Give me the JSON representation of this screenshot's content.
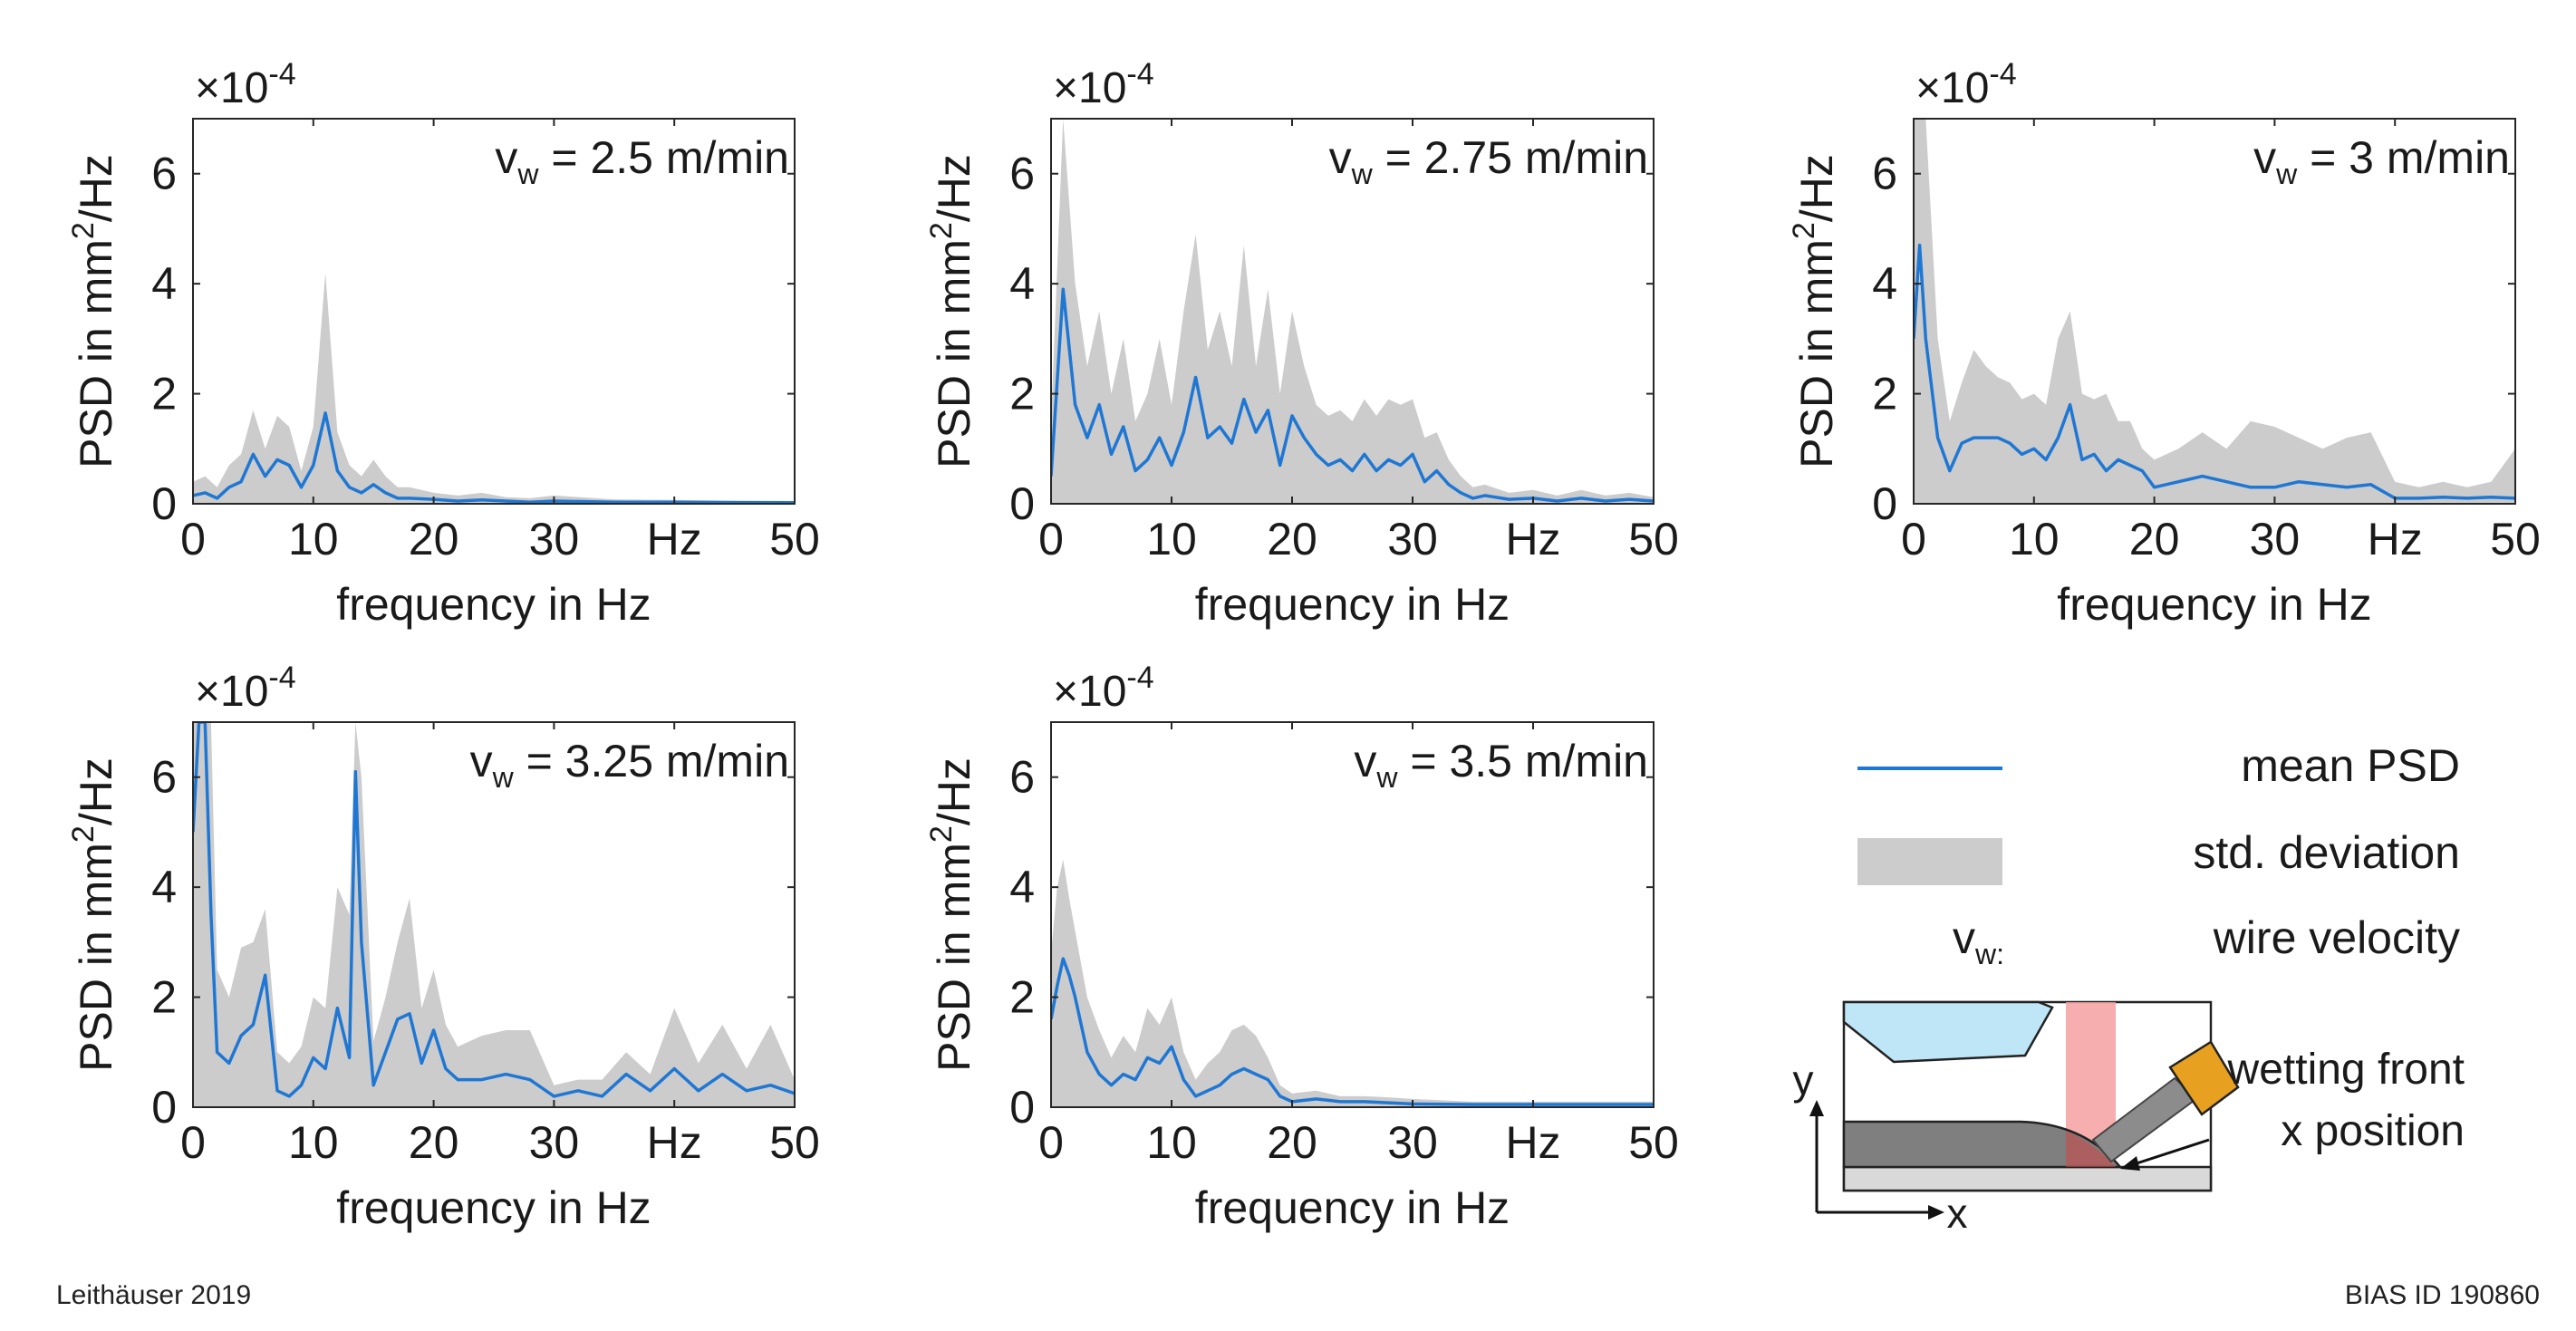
{
  "footer": {
    "author_year": "Leithäuser 2019",
    "id": "BIAS ID 190860"
  },
  "legend": {
    "mean_label": "mean PSD",
    "std_label": "std. deviation",
    "vw_symbol": "v",
    "vw_subscript": "w:",
    "vw_label": "wire velocity",
    "mean_color": "#1f77d4",
    "std_color": "#cccccc"
  },
  "sketch": {
    "y_axis": "y",
    "x_axis": "x",
    "annotation_line1": "wetting front",
    "annotation_line2": "x position"
  },
  "chart_data": [
    {
      "type": "line",
      "title_prefix": "v",
      "title_sub": "w",
      "title_suffix": " = 2.5 m/min",
      "xlabel": "frequency in Hz",
      "ylabel": "PSD in mm",
      "ylabel_sup": "2",
      "ylabel_suffix": "/Hz",
      "exponent_label": "×10",
      "exponent_sup": "-4",
      "xlim": [
        0,
        50
      ],
      "ylim": [
        0,
        7
      ],
      "x_ticks": [
        "0",
        "10",
        "20",
        "30",
        "Hz",
        "50"
      ],
      "y_ticks": [
        "0",
        "2",
        "4",
        "6"
      ],
      "mean": {
        "x": [
          0,
          1,
          2,
          3,
          4,
          5,
          6,
          7,
          8,
          9,
          10,
          11,
          12,
          13,
          14,
          15,
          16,
          17,
          18,
          20,
          22,
          24,
          26,
          28,
          30,
          35,
          40,
          45,
          50
        ],
        "y": [
          0.15,
          0.2,
          0.1,
          0.3,
          0.4,
          0.9,
          0.5,
          0.8,
          0.7,
          0.3,
          0.7,
          1.65,
          0.6,
          0.3,
          0.2,
          0.35,
          0.2,
          0.1,
          0.1,
          0.08,
          0.05,
          0.07,
          0.05,
          0.03,
          0.05,
          0.03,
          0.03,
          0.02,
          0.02
        ]
      },
      "std_upper": {
        "x": [
          0,
          1,
          2,
          3,
          4,
          5,
          6,
          7,
          8,
          9,
          10,
          11,
          12,
          13,
          14,
          15,
          16,
          17,
          18,
          20,
          22,
          24,
          26,
          28,
          30,
          35,
          40,
          45,
          50
        ],
        "y": [
          0.4,
          0.5,
          0.3,
          0.7,
          0.9,
          1.7,
          1.0,
          1.6,
          1.4,
          0.6,
          1.4,
          4.2,
          1.3,
          0.7,
          0.5,
          0.8,
          0.5,
          0.3,
          0.3,
          0.2,
          0.15,
          0.2,
          0.12,
          0.1,
          0.15,
          0.08,
          0.07,
          0.06,
          0.05
        ]
      },
      "std_lower": {
        "x": [
          0,
          50
        ],
        "y": [
          0,
          0
        ]
      }
    },
    {
      "type": "line",
      "title_prefix": "v",
      "title_sub": "w",
      "title_suffix": " = 2.75 m/min",
      "xlabel": "frequency in Hz",
      "ylabel": "PSD in mm",
      "ylabel_sup": "2",
      "ylabel_suffix": "/Hz",
      "exponent_label": "×10",
      "exponent_sup": "-4",
      "xlim": [
        0,
        50
      ],
      "ylim": [
        0,
        7
      ],
      "x_ticks": [
        "0",
        "10",
        "20",
        "30",
        "Hz",
        "50"
      ],
      "y_ticks": [
        "0",
        "2",
        "4",
        "6"
      ],
      "mean": {
        "x": [
          0,
          1,
          2,
          3,
          4,
          5,
          6,
          7,
          8,
          9,
          10,
          11,
          12,
          13,
          14,
          15,
          16,
          17,
          18,
          19,
          20,
          21,
          22,
          23,
          24,
          25,
          26,
          27,
          28,
          29,
          30,
          31,
          32,
          33,
          34,
          35,
          36,
          38,
          40,
          42,
          44,
          46,
          48,
          50
        ],
        "y": [
          0.5,
          3.9,
          1.8,
          1.2,
          1.8,
          0.9,
          1.4,
          0.6,
          0.8,
          1.2,
          0.7,
          1.3,
          2.3,
          1.2,
          1.4,
          1.1,
          1.9,
          1.3,
          1.7,
          0.7,
          1.6,
          1.2,
          0.9,
          0.7,
          0.8,
          0.6,
          0.9,
          0.6,
          0.8,
          0.7,
          0.9,
          0.4,
          0.6,
          0.35,
          0.2,
          0.1,
          0.15,
          0.08,
          0.1,
          0.05,
          0.1,
          0.05,
          0.08,
          0.05
        ]
      },
      "std_upper": {
        "x": [
          0,
          1,
          2,
          3,
          4,
          5,
          6,
          7,
          8,
          9,
          10,
          11,
          12,
          13,
          14,
          15,
          16,
          17,
          18,
          19,
          20,
          21,
          22,
          23,
          24,
          25,
          26,
          27,
          28,
          29,
          30,
          31,
          32,
          33,
          34,
          35,
          36,
          38,
          40,
          42,
          44,
          46,
          48,
          50
        ],
        "y": [
          1.5,
          7.0,
          4.0,
          2.5,
          3.5,
          2.0,
          3.0,
          1.5,
          2.0,
          3.0,
          1.8,
          3.5,
          4.9,
          2.8,
          3.5,
          2.5,
          4.7,
          2.5,
          3.9,
          2.0,
          3.5,
          2.5,
          1.8,
          1.6,
          1.7,
          1.5,
          1.9,
          1.6,
          1.9,
          1.8,
          1.9,
          1.2,
          1.3,
          0.8,
          0.5,
          0.3,
          0.35,
          0.2,
          0.25,
          0.15,
          0.25,
          0.15,
          0.2,
          0.12
        ]
      },
      "std_lower": {
        "x": [
          0,
          50
        ],
        "y": [
          0,
          0
        ]
      }
    },
    {
      "type": "line",
      "title_prefix": "v",
      "title_sub": "w",
      "title_suffix": " = 3 m/min",
      "xlabel": "frequency in Hz",
      "ylabel": "PSD in mm",
      "ylabel_sup": "2",
      "ylabel_suffix": "/Hz",
      "exponent_label": "×10",
      "exponent_sup": "-4",
      "xlim": [
        0,
        50
      ],
      "ylim": [
        0,
        7
      ],
      "x_ticks": [
        "0",
        "10",
        "20",
        "30",
        "Hz",
        "50"
      ],
      "y_ticks": [
        "0",
        "2",
        "4",
        "6"
      ],
      "mean": {
        "x": [
          0,
          0.5,
          1,
          2,
          3,
          4,
          5,
          6,
          7,
          8,
          9,
          10,
          11,
          12,
          13,
          14,
          15,
          16,
          17,
          18,
          19,
          20,
          22,
          24,
          26,
          28,
          30,
          32,
          34,
          36,
          38,
          40,
          42,
          44,
          46,
          48,
          50
        ],
        "y": [
          3.0,
          4.7,
          3.0,
          1.2,
          0.6,
          1.1,
          1.2,
          1.2,
          1.2,
          1.1,
          0.9,
          1.0,
          0.8,
          1.2,
          1.8,
          0.8,
          0.9,
          0.6,
          0.8,
          0.7,
          0.6,
          0.3,
          0.4,
          0.5,
          0.4,
          0.3,
          0.3,
          0.4,
          0.35,
          0.3,
          0.35,
          0.1,
          0.1,
          0.12,
          0.1,
          0.12,
          0.1
        ]
      },
      "std_upper": {
        "x": [
          0,
          0.5,
          1,
          2,
          3,
          4,
          5,
          6,
          7,
          8,
          9,
          10,
          11,
          12,
          13,
          14,
          15,
          16,
          17,
          18,
          19,
          20,
          22,
          24,
          26,
          28,
          30,
          32,
          34,
          36,
          38,
          40,
          42,
          44,
          46,
          48,
          50
        ],
        "y": [
          7.0,
          7.0,
          7.0,
          3.0,
          1.5,
          2.2,
          2.8,
          2.5,
          2.3,
          2.2,
          1.9,
          2.0,
          1.8,
          3.0,
          3.5,
          2.0,
          1.9,
          2.0,
          1.5,
          1.5,
          1.0,
          0.8,
          1.0,
          1.3,
          1.0,
          1.5,
          1.4,
          1.2,
          1.0,
          1.2,
          1.3,
          0.4,
          0.3,
          0.4,
          0.3,
          0.4,
          1.0
        ]
      },
      "std_lower": {
        "x": [
          0,
          50
        ],
        "y": [
          0,
          0
        ]
      }
    },
    {
      "type": "line",
      "title_prefix": "v",
      "title_sub": "w",
      "title_suffix": " = 3.25 m/min",
      "xlabel": "frequency in Hz",
      "ylabel": "PSD in mm",
      "ylabel_sup": "2",
      "ylabel_suffix": "/Hz",
      "exponent_label": "×10",
      "exponent_sup": "-4",
      "xlim": [
        0,
        50
      ],
      "ylim": [
        0,
        7
      ],
      "x_ticks": [
        "0",
        "10",
        "20",
        "30",
        "Hz",
        "50"
      ],
      "y_ticks": [
        "0",
        "2",
        "4",
        "6"
      ],
      "mean": {
        "x": [
          0,
          0.5,
          1,
          1.5,
          2,
          3,
          4,
          5,
          6,
          7,
          8,
          9,
          10,
          11,
          12,
          13,
          13.5,
          14,
          15,
          16,
          17,
          18,
          19,
          20,
          21,
          22,
          24,
          26,
          28,
          30,
          32,
          34,
          36,
          38,
          40,
          42,
          44,
          46,
          48,
          50
        ],
        "y": [
          5.0,
          7.0,
          7.0,
          3.5,
          1.0,
          0.8,
          1.3,
          1.5,
          2.4,
          0.3,
          0.2,
          0.4,
          0.9,
          0.7,
          1.8,
          0.9,
          6.1,
          3.0,
          0.4,
          1.0,
          1.6,
          1.7,
          0.8,
          1.4,
          0.7,
          0.5,
          0.5,
          0.6,
          0.5,
          0.2,
          0.3,
          0.2,
          0.6,
          0.3,
          0.7,
          0.3,
          0.6,
          0.3,
          0.4,
          0.25
        ]
      },
      "std_upper": {
        "x": [
          0,
          0.5,
          1,
          1.5,
          2,
          3,
          4,
          5,
          6,
          7,
          8,
          9,
          10,
          11,
          12,
          13,
          13.5,
          14,
          15,
          16,
          17,
          18,
          19,
          20,
          21,
          22,
          24,
          26,
          28,
          30,
          32,
          34,
          36,
          38,
          40,
          42,
          44,
          46,
          48,
          50
        ],
        "y": [
          7.0,
          7.0,
          7.0,
          7.0,
          2.5,
          2.0,
          2.9,
          3.0,
          3.6,
          1.0,
          0.8,
          1.1,
          2.0,
          1.8,
          4.0,
          3.5,
          7.0,
          6.0,
          1.2,
          2.0,
          3.0,
          3.8,
          1.8,
          2.5,
          1.5,
          1.1,
          1.3,
          1.4,
          1.4,
          0.4,
          0.5,
          0.5,
          1.0,
          0.6,
          1.8,
          0.8,
          1.5,
          0.7,
          1.5,
          0.5
        ]
      },
      "std_lower": {
        "x": [
          0,
          50
        ],
        "y": [
          0,
          0
        ]
      }
    },
    {
      "type": "line",
      "title_prefix": "v",
      "title_sub": "w",
      "title_suffix": " = 3.5 m/min",
      "xlabel": "frequency in Hz",
      "ylabel": "PSD in mm",
      "ylabel_sup": "2",
      "ylabel_suffix": "/Hz",
      "exponent_label": "×10",
      "exponent_sup": "-4",
      "xlim": [
        0,
        50
      ],
      "ylim": [
        0,
        7
      ],
      "x_ticks": [
        "0",
        "10",
        "20",
        "30",
        "Hz",
        "50"
      ],
      "y_ticks": [
        "0",
        "2",
        "4",
        "6"
      ],
      "mean": {
        "x": [
          0,
          0.5,
          1,
          1.5,
          2,
          3,
          4,
          5,
          6,
          7,
          8,
          9,
          10,
          11,
          12,
          13,
          14,
          15,
          16,
          17,
          18,
          19,
          20,
          22,
          24,
          26,
          28,
          30,
          35,
          40,
          45,
          50
        ],
        "y": [
          1.6,
          2.2,
          2.7,
          2.4,
          2.0,
          1.0,
          0.6,
          0.4,
          0.6,
          0.5,
          0.9,
          0.8,
          1.1,
          0.5,
          0.2,
          0.3,
          0.4,
          0.6,
          0.7,
          0.6,
          0.5,
          0.2,
          0.1,
          0.15,
          0.1,
          0.1,
          0.08,
          0.06,
          0.05,
          0.05,
          0.05,
          0.05
        ]
      },
      "std_upper": {
        "x": [
          0,
          0.5,
          1,
          1.5,
          2,
          3,
          4,
          5,
          6,
          7,
          8,
          9,
          10,
          11,
          12,
          13,
          14,
          15,
          16,
          17,
          18,
          19,
          20,
          22,
          24,
          26,
          28,
          30,
          35,
          40,
          45,
          50
        ],
        "y": [
          2.8,
          4.0,
          4.5,
          3.8,
          3.2,
          2.0,
          1.4,
          0.9,
          1.3,
          1.0,
          1.8,
          1.5,
          2.0,
          1.0,
          0.5,
          0.8,
          1.0,
          1.4,
          1.5,
          1.3,
          0.9,
          0.4,
          0.25,
          0.3,
          0.2,
          0.2,
          0.18,
          0.15,
          0.1,
          0.1,
          0.1,
          0.1
        ]
      },
      "std_lower": {
        "x": [
          0,
          50
        ],
        "y": [
          0,
          0
        ]
      }
    }
  ]
}
